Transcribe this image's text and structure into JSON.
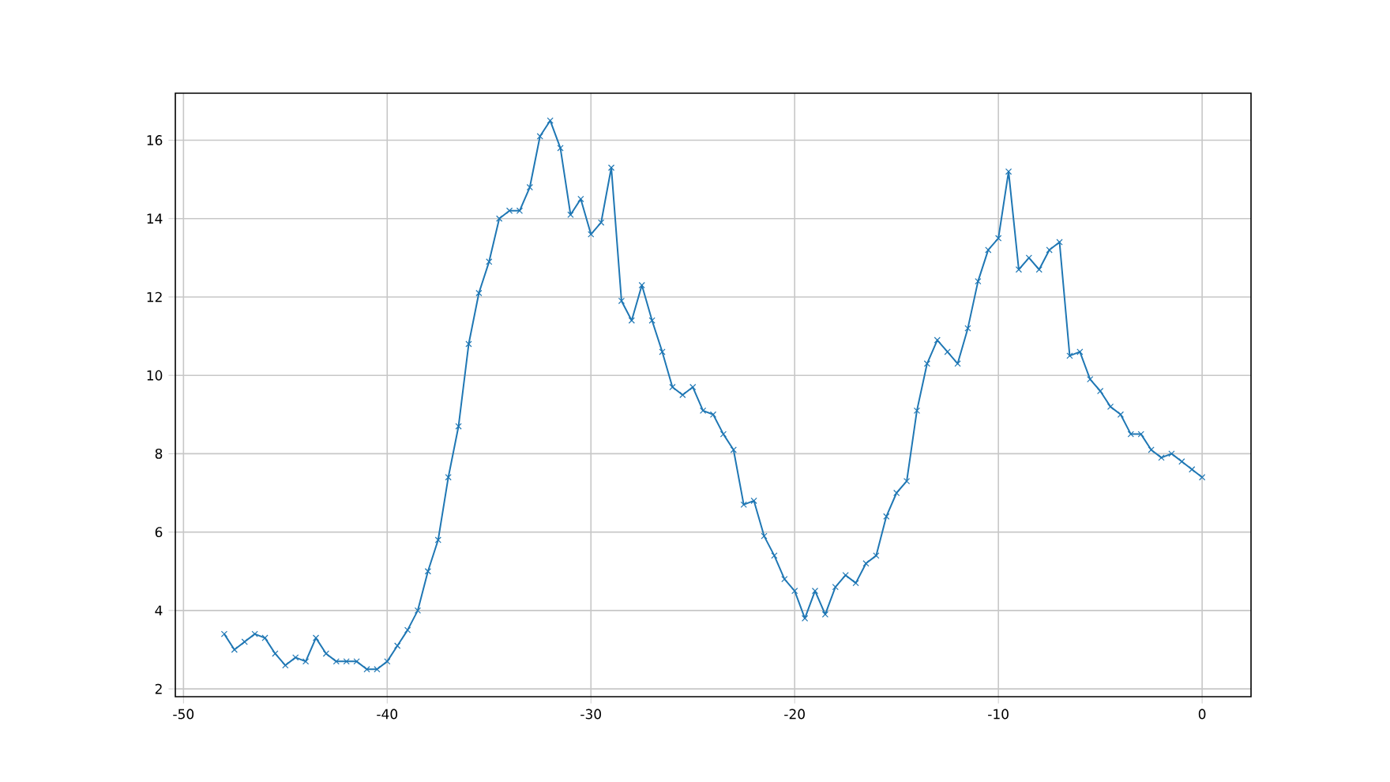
{
  "chart_data": {
    "type": "line",
    "x": [
      -48,
      -47.5,
      -47,
      -46.5,
      -46,
      -45.5,
      -45,
      -44.5,
      -44,
      -43.5,
      -43,
      -42.5,
      -42,
      -41.5,
      -41,
      -40.5,
      -40,
      -39.5,
      -39,
      -38.5,
      -38,
      -37.5,
      -37,
      -36.5,
      -36,
      -35.5,
      -35,
      -34.5,
      -34,
      -33.5,
      -33,
      -32.5,
      -32,
      -31.5,
      -31,
      -30.5,
      -30,
      -29.5,
      -29,
      -28.5,
      -28,
      -27.5,
      -27,
      -26.5,
      -26,
      -25.5,
      -25,
      -24.5,
      -24,
      -23.5,
      -23,
      -22.5,
      -22,
      -21.5,
      -21,
      -20.5,
      -20,
      -19.5,
      -19,
      -18.5,
      -18,
      -17.5,
      -17,
      -16.5,
      -16,
      -15.5,
      -15,
      -14.5,
      -14,
      -13.5,
      -13,
      -12.5,
      -12,
      -11.5,
      -11,
      -10.5,
      -10,
      -9.5,
      -9,
      -8.5,
      -8,
      -7.5,
      -7,
      -6.5,
      -6,
      -5.5,
      -5,
      -4.5,
      -4,
      -3.5,
      -3,
      -2.5,
      -2,
      -1.5,
      -1,
      -0.5,
      0
    ],
    "series": [
      {
        "color": "#1f77b4",
        "values": [
          3.4,
          3.0,
          3.2,
          3.4,
          3.3,
          2.9,
          2.6,
          2.8,
          2.7,
          3.3,
          2.9,
          2.7,
          2.7,
          2.7,
          2.5,
          2.5,
          2.7,
          3.1,
          3.5,
          4.0,
          5.0,
          5.8,
          7.4,
          8.7,
          10.8,
          12.1,
          12.9,
          14.0,
          14.2,
          14.2,
          14.8,
          16.1,
          16.5,
          15.8,
          14.1,
          14.5,
          13.6,
          13.9,
          15.3,
          11.9,
          11.4,
          12.3,
          11.4,
          10.6,
          9.7,
          9.5,
          9.7,
          9.1,
          9.0,
          8.5,
          8.1,
          6.7,
          6.8,
          5.9,
          5.4,
          4.8,
          4.5,
          3.8,
          4.5,
          3.9,
          4.6,
          4.9,
          4.7,
          5.2,
          5.4,
          6.4,
          7.0,
          7.3,
          9.1,
          10.3,
          10.9,
          10.6,
          10.3,
          11.2,
          12.4,
          13.2,
          13.5,
          15.2,
          12.7,
          13.0,
          12.7,
          13.2,
          13.4,
          10.5,
          10.6,
          9.9,
          9.6,
          9.2,
          9.0,
          8.5,
          8.5,
          8.1,
          7.9,
          8.0,
          7.8,
          7.6,
          7.4
        ]
      }
    ],
    "xlim": [
      -50.4,
      2.4
    ],
    "ylim": [
      1.8,
      17.2
    ],
    "xticks": [
      -50,
      -40,
      -30,
      -20,
      -10,
      0
    ],
    "yticks": [
      2,
      4,
      6,
      8,
      10,
      12,
      14,
      16
    ],
    "grid": true,
    "marker": "cross",
    "line_style": "solid"
  }
}
